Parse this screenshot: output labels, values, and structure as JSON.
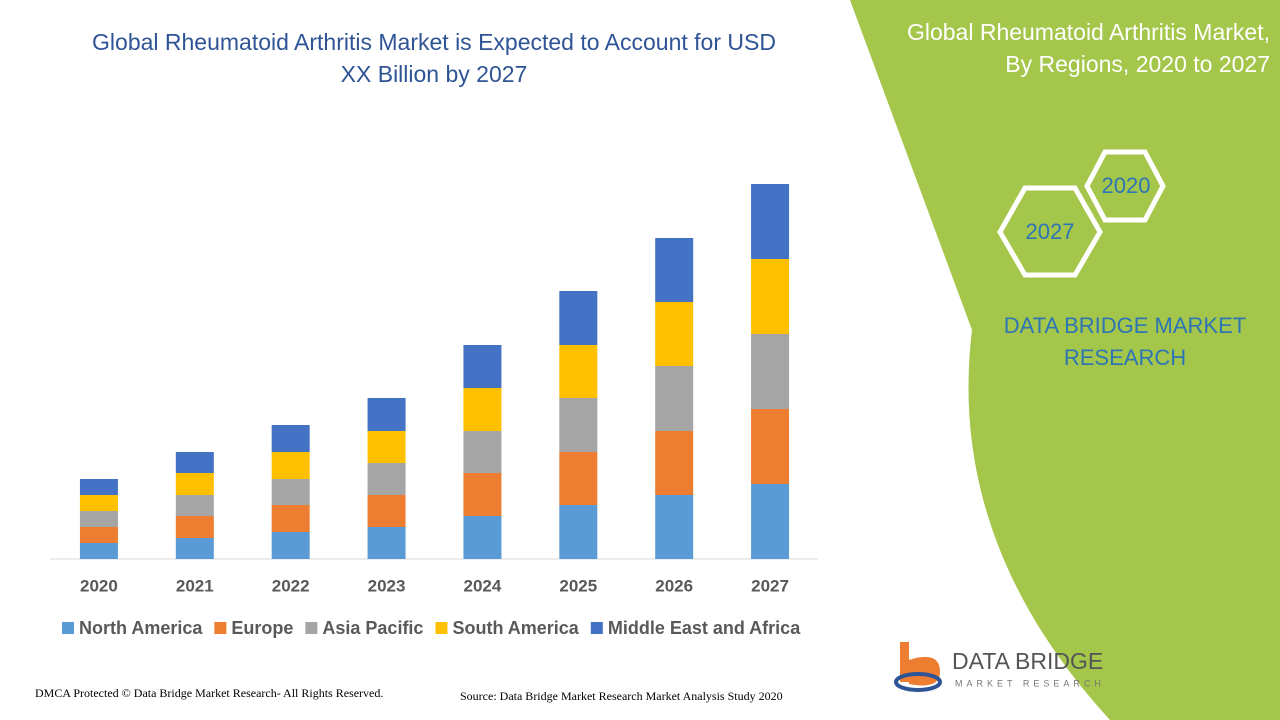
{
  "chart_data": {
    "type": "stacked-bar",
    "title": "Global Rheumatoid Arthritis Market is Expected to Account for USD XX Billion by 2027",
    "categories": [
      "2020",
      "2021",
      "2022",
      "2023",
      "2024",
      "2025",
      "2026",
      "2027"
    ],
    "series": [
      {
        "name": "North America",
        "color": "#5b9bd5",
        "values": [
          16,
          21,
          27,
          32,
          43,
          54,
          64,
          75
        ]
      },
      {
        "name": "Europe",
        "color": "#ed7d31",
        "values": [
          16,
          22,
          27,
          32,
          43,
          53,
          64,
          75
        ]
      },
      {
        "name": "Asia Pacific",
        "color": "#a5a5a5",
        "values": [
          16,
          21,
          26,
          32,
          42,
          54,
          65,
          75
        ]
      },
      {
        "name": "South America",
        "color": "#ffc000",
        "values": [
          16,
          22,
          27,
          32,
          43,
          53,
          64,
          75
        ]
      },
      {
        "name": "Middle East and Africa",
        "color": "#4472c4",
        "values": [
          16,
          21,
          27,
          33,
          43,
          54,
          64,
          75
        ]
      }
    ],
    "ylim": [
      0,
      400
    ]
  },
  "panel": {
    "title": "Global Rheumatoid Arthritis Market, By Regions, 2020 to 2027",
    "hexagons": [
      "2027",
      "2020"
    ],
    "brand": "DATA BRIDGE MARKET RESEARCH"
  },
  "logo": {
    "name": "DATA BRIDGE",
    "tagline": "MARKET RESEARCH"
  },
  "footer": {
    "copyright": "DMCA Protected © Data Bridge Market Research- All Rights Reserved.",
    "source": "Source: Data Bridge Market Research Market Analysis Study 2020"
  }
}
